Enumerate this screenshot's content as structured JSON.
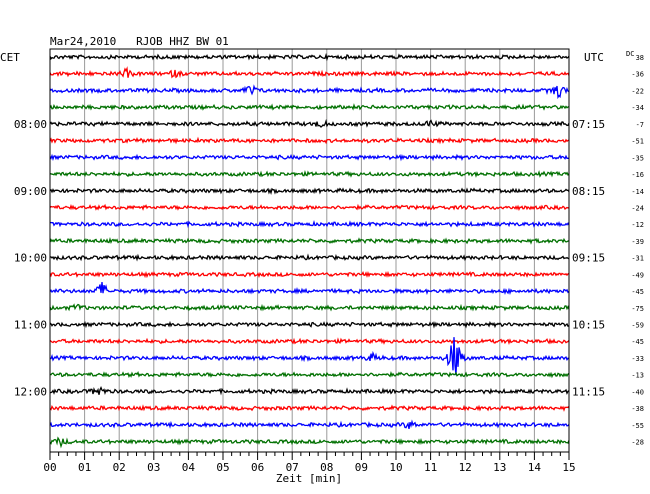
{
  "chart_data": {
    "type": "line",
    "title": "Mar24,2010   RJOB HHZ BW 01",
    "xlabel": "Zeit [min]",
    "left_axis_label": "CET",
    "right_axis_label": "UTC",
    "dc_label": "DC",
    "xlim": [
      0,
      15
    ],
    "x_ticks": [
      "00",
      "01",
      "02",
      "03",
      "04",
      "05",
      "06",
      "07",
      "08",
      "09",
      "10",
      "11",
      "12",
      "13",
      "14",
      "15"
    ],
    "trace_colors": [
      "#000000",
      "#ff0000",
      "#0000ff",
      "#007000"
    ],
    "traces": 24,
    "left_time_labels": [
      {
        "trace": 4,
        "text": "08:00"
      },
      {
        "trace": 8,
        "text": "09:00"
      },
      {
        "trace": 12,
        "text": "10:00"
      },
      {
        "trace": 16,
        "text": "11:00"
      },
      {
        "trace": 20,
        "text": "12:00"
      }
    ],
    "right_time_labels": [
      {
        "trace": 4,
        "text": "07:15"
      },
      {
        "trace": 8,
        "text": "08:15"
      },
      {
        "trace": 12,
        "text": "09:15"
      },
      {
        "trace": 16,
        "text": "10:15"
      },
      {
        "trace": 20,
        "text": "11:15"
      }
    ],
    "dc_offsets": [
      "38",
      "-36",
      "-22",
      "-34",
      "-7",
      "-51",
      "-35",
      "-16",
      "-14",
      "-24",
      "-12",
      "-39",
      "-31",
      "-49",
      "-45",
      "-75",
      "-59",
      "-45",
      "-33",
      "-13",
      "-40",
      "-38",
      "-55",
      "-28"
    ],
    "events": [
      {
        "trace": 1,
        "minute": 2.2,
        "amplitude": 4
      },
      {
        "trace": 1,
        "minute": 3.6,
        "amplitude": 3
      },
      {
        "trace": 2,
        "minute": 5.8,
        "amplitude": 6
      },
      {
        "trace": 2,
        "minute": 14.7,
        "amplitude": 8
      },
      {
        "trace": 4,
        "minute": 7.8,
        "amplitude": 4
      },
      {
        "trace": 4,
        "minute": 11.0,
        "amplitude": 3
      },
      {
        "trace": 14,
        "minute": 1.5,
        "amplitude": 9
      },
      {
        "trace": 15,
        "minute": 0.8,
        "amplitude": 3
      },
      {
        "trace": 18,
        "minute": 9.3,
        "amplitude": 4
      },
      {
        "trace": 18,
        "minute": 11.7,
        "amplitude": 30
      },
      {
        "trace": 20,
        "minute": 1.4,
        "amplitude": 6
      },
      {
        "trace": 22,
        "minute": 10.4,
        "amplitude": 4
      },
      {
        "trace": 23,
        "minute": 0.3,
        "amplitude": 4
      }
    ]
  }
}
